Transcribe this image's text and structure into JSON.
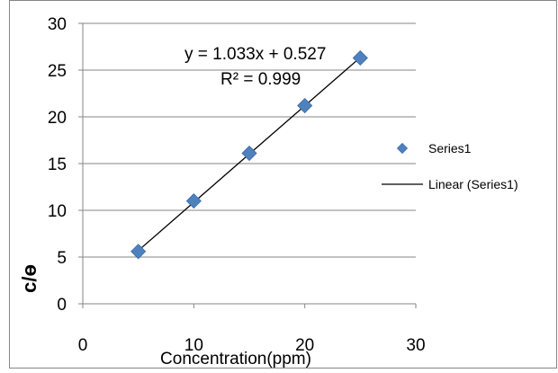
{
  "chart_data": {
    "type": "scatter",
    "xlabel": "Concentration(ppm)",
    "ylabel": "c/ɵ",
    "xlim": [
      0,
      30
    ],
    "ylim": [
      0,
      30
    ],
    "x_ticks": [
      0,
      10,
      20,
      30
    ],
    "y_ticks": [
      0,
      5,
      10,
      15,
      20,
      25,
      30
    ],
    "grid": "horizontal",
    "legend_position": "right",
    "series": [
      {
        "name": "Series1",
        "marker": "diamond",
        "color": "#4f81bd",
        "x": [
          5,
          10,
          15,
          20,
          25
        ],
        "y": [
          5.6,
          11.0,
          16.1,
          21.2,
          26.3
        ]
      }
    ],
    "trendline": {
      "name": "Linear (Series1)",
      "color": "#000000",
      "slope": 1.033,
      "intercept": 0.527,
      "x_range": [
        5,
        25
      ],
      "equation_label": "y = 1.033x + 0.527",
      "r2_label": "R² = 0.999"
    }
  }
}
